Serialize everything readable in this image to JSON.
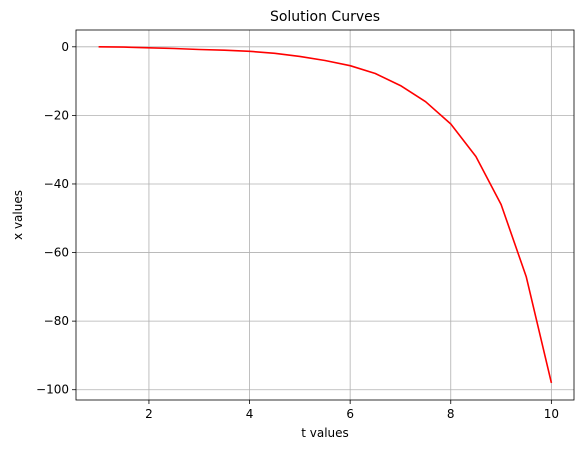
{
  "chart_data": {
    "type": "line",
    "title": "Solution Curves",
    "xlabel": "t values",
    "ylabel": "x values",
    "xlim": [
      0.55,
      10.45
    ],
    "ylim": [
      -103.0,
      4.9
    ],
    "xticks": [
      2,
      4,
      6,
      8,
      10
    ],
    "xtick_labels": [
      "2",
      "4",
      "6",
      "8",
      "10"
    ],
    "yticks": [
      0,
      -20,
      -40,
      -60,
      -80,
      -100
    ],
    "ytick_labels": [
      "0",
      "−20",
      "−40",
      "−60",
      "−80",
      "−100"
    ],
    "grid": true,
    "series": [
      {
        "color": "#ff0000",
        "x": [
          1.0,
          1.5,
          2.0,
          2.5,
          3.0,
          3.5,
          4.0,
          4.5,
          5.0,
          5.5,
          6.0,
          6.5,
          7.0,
          7.5,
          8.0,
          8.5,
          9.0,
          9.5,
          10.0
        ],
        "y": [
          0.0,
          -0.1,
          -0.3,
          -0.5,
          -0.8,
          -1.0,
          -1.3,
          -1.9,
          -2.8,
          -4.0,
          -5.5,
          -7.8,
          -11.3,
          -16.0,
          -22.5,
          -32.0,
          -46.0,
          -67.0,
          -98.0
        ]
      }
    ]
  }
}
